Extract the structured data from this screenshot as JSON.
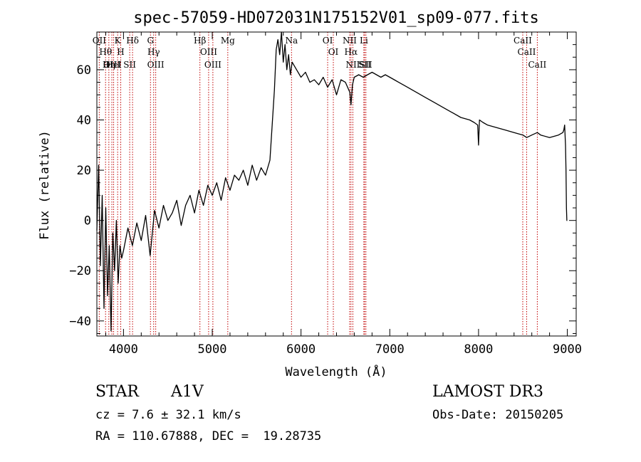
{
  "chart_data": {
    "type": "line",
    "title": "spec-57059-HD072031N175152V01_sp09-077.fits",
    "xlabel": "Wavelength (Å)",
    "ylabel": "Flux (relative)",
    "xlim": [
      3700,
      9100
    ],
    "ylim": [
      -46,
      75
    ],
    "xticks": [
      4000,
      5000,
      6000,
      7000,
      8000,
      9000
    ],
    "yticks": [
      -40,
      -20,
      0,
      20,
      40,
      60
    ],
    "line_color": "#000000",
    "marker_color": "#c00000",
    "series": [
      {
        "name": "Flux",
        "x": [
          3700,
          3720,
          3740,
          3760,
          3780,
          3800,
          3820,
          3840,
          3860,
          3880,
          3900,
          3920,
          3940,
          3960,
          3980,
          4000,
          4050,
          4100,
          4150,
          4200,
          4250,
          4300,
          4350,
          4400,
          4450,
          4500,
          4550,
          4600,
          4650,
          4700,
          4750,
          4800,
          4850,
          4900,
          4950,
          5000,
          5050,
          5100,
          5150,
          5200,
          5250,
          5300,
          5350,
          5400,
          5450,
          5500,
          5550,
          5600,
          5650,
          5700,
          5720,
          5740,
          5760,
          5780,
          5800,
          5820,
          5840,
          5860,
          5880,
          5900,
          5950,
          6000,
          6050,
          6100,
          6150,
          6200,
          6250,
          6300,
          6350,
          6400,
          6450,
          6500,
          6550,
          6563,
          6580,
          6600,
          6650,
          6700,
          6750,
          6800,
          6850,
          6900,
          6950,
          7000,
          7050,
          7100,
          7150,
          7200,
          7300,
          7400,
          7500,
          7600,
          7700,
          7800,
          7900,
          7950,
          7990,
          8000,
          8010,
          8050,
          8100,
          8200,
          8300,
          8400,
          8500,
          8542,
          8600,
          8662,
          8700,
          8800,
          8900,
          8950,
          8960,
          8970,
          8980,
          8985,
          8990,
          8995,
          9000
        ],
        "values": [
          -4,
          22,
          -18,
          10,
          -35,
          5,
          -30,
          -10,
          -44,
          -5,
          -20,
          0,
          -25,
          -10,
          -15,
          -12,
          -3,
          -10,
          -1,
          -8,
          2,
          -14,
          4,
          -3,
          6,
          0,
          3,
          8,
          -2,
          6,
          10,
          3,
          12,
          6,
          14,
          10,
          15,
          8,
          17,
          12,
          18,
          16,
          20,
          14,
          22,
          16,
          21,
          18,
          24,
          52,
          68,
          72,
          66,
          75,
          63,
          70,
          60,
          66,
          58,
          63,
          60,
          57,
          59,
          55,
          56,
          54,
          57,
          53,
          56,
          50,
          56,
          55,
          51,
          46,
          54,
          57,
          58,
          57,
          58,
          59,
          58,
          57,
          58,
          57,
          56,
          55,
          54,
          53,
          51,
          49,
          47,
          45,
          43,
          41,
          40,
          39,
          38,
          30,
          40,
          39,
          38,
          37,
          36,
          35,
          34,
          33,
          34,
          35,
          34,
          33,
          34,
          35,
          36,
          38,
          30,
          20,
          5,
          0,
          0
        ]
      }
    ],
    "lines": [
      {
        "label": "Hθ",
        "x": 3798
      },
      {
        "label": "OII",
        "x": 3727
      },
      {
        "label": "OIII",
        "x": 3869
      },
      {
        "label": "K",
        "x": 3934
      },
      {
        "label": "HeI",
        "x": 3889
      },
      {
        "label": "Hη",
        "x": 3835
      },
      {
        "label": "H",
        "x": 3969
      },
      {
        "label": "Hδ",
        "x": 4102
      },
      {
        "label": "SII",
        "x": 4070
      },
      {
        "label": "OIII",
        "x": 4363
      },
      {
        "label": "Hγ",
        "x": 4340
      },
      {
        "label": "G",
        "x": 4304
      },
      {
        "label": "Hβ",
        "x": 4861
      },
      {
        "label": "OIII",
        "x": 5007
      },
      {
        "label": "OIII",
        "x": 4959
      },
      {
        "label": "Mg",
        "x": 5175
      },
      {
        "label": "Na",
        "x": 5893
      },
      {
        "label": "OI",
        "x": 6300
      },
      {
        "label": "OI",
        "x": 6364
      },
      {
        "label": "Hα",
        "x": 6563
      },
      {
        "label": "NII",
        "x": 6548
      },
      {
        "label": "NII",
        "x": 6584
      },
      {
        "label": "SII",
        "x": 6716
      },
      {
        "label": "Li",
        "x": 6708
      },
      {
        "label": "SII",
        "x": 6731
      },
      {
        "label": "CaII",
        "x": 8542
      },
      {
        "label": "CaII",
        "x": 8498
      },
      {
        "label": "CaII",
        "x": 8662
      }
    ]
  },
  "info": {
    "object_class": "STAR",
    "spectral_type": "A1V",
    "survey": "LAMOST DR3",
    "cz": "cz = 7.6 ± 32.1 km/s",
    "obs_date": "Obs-Date: 20150205",
    "coords": "RA = 110.67888, DEC =  19.28735"
  }
}
